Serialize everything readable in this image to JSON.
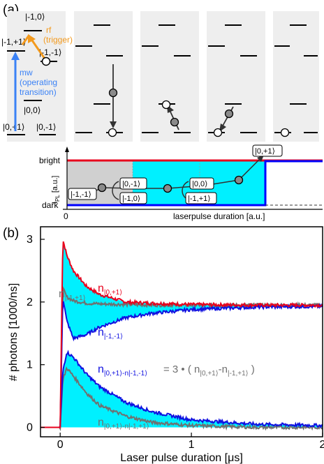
{
  "panel_a": {
    "label": "(a)",
    "levels": {
      "l_m10": "|-1,0⟩",
      "l_m1p1": "|-1,+1⟩",
      "l_m1m1": "|-1,-1⟩",
      "l_00": "|0,0⟩",
      "l_0p1": "|0,+1⟩",
      "l_0m1": "|0,-1⟩"
    },
    "rf_label_1": "rf",
    "rf_label_2": "(trigger)",
    "mw_label_1": "mw",
    "mw_label_2": "(operating",
    "mw_label_3": "transition)",
    "colors": {
      "rf": "#f39a1e",
      "mw": "#3b82f6"
    }
  },
  "schematic": {
    "bright": "bright",
    "dark": "dark",
    "ylabel_main": "I",
    "ylabel_sub": "PL",
    "ylabel_units": "[a.u.]",
    "origin": "0",
    "xlabel": "laserpulse duration [a.u.]",
    "boxes": {
      "b1": "|-1,-1⟩",
      "b2": "|0,-1⟩",
      "b3": "|-1,0⟩",
      "b4": "|0,0⟩",
      "b5": "|-1,+1⟩",
      "b6": "|0,+1⟩"
    },
    "colors": {
      "bright_line": "#e8001c",
      "dark_line": "#0000ff",
      "cyan": "#00f0ff",
      "gray": "#d0d0d0"
    }
  },
  "chart_data": {
    "type": "line",
    "panel_label": "(b)",
    "xlabel": "Laser pulse duration [μs]",
    "ylabel": "# photons [1000/ns]",
    "xlim": [
      -0.15,
      2.0
    ],
    "ylim": [
      -0.15,
      3.2
    ],
    "xticks": [
      "0",
      "1",
      "2"
    ],
    "yticks": [
      "0",
      "1",
      "2",
      "3"
    ],
    "annotation": "= 3 • ( n|0,+1⟩-n|-1,+1⟩ )",
    "label_parts": {
      "n": "n",
      "s_0p1": "|0,+1⟩",
      "s_m1p1": "|-1,+1⟩",
      "s_m1m1": "|-1,-1⟩",
      "s_d1": "|0,+1⟩-n|-1,-1⟩",
      "s_d2": "|0,+1⟩-n|-1,+1⟩",
      "eq_prefix": "= 3 • ( n",
      "eq_mid": "-n",
      "eq_suffix": " )"
    },
    "series": [
      {
        "name": "n|0,+1⟩",
        "color": "#e8001c",
        "x": [
          0.0,
          0.02,
          0.05,
          0.1,
          0.2,
          0.3,
          0.5,
          0.7,
          1.0,
          1.5,
          2.0
        ],
        "y": [
          0.0,
          3.0,
          2.75,
          2.5,
          2.25,
          2.12,
          2.0,
          1.98,
          1.96,
          1.95,
          1.95
        ]
      },
      {
        "name": "n|-1,+1⟩",
        "color": "#707070",
        "x": [
          0.0,
          0.02,
          0.05,
          0.1,
          0.2,
          0.3,
          0.5,
          0.7,
          1.0,
          1.5,
          2.0
        ],
        "y": [
          0.0,
          2.22,
          2.08,
          2.02,
          1.98,
          1.97,
          1.96,
          1.95,
          1.95,
          1.95,
          1.95
        ]
      },
      {
        "name": "n|-1,-1⟩",
        "color": "#1010e0",
        "x": [
          0.0,
          0.02,
          0.05,
          0.1,
          0.2,
          0.3,
          0.5,
          0.7,
          1.0,
          1.5,
          2.0
        ],
        "y": [
          0.0,
          2.08,
          1.7,
          1.42,
          1.48,
          1.6,
          1.75,
          1.82,
          1.88,
          1.92,
          1.93
        ]
      },
      {
        "name": "n|0,+1⟩-n|-1,-1⟩",
        "color": "#1010e0",
        "x": [
          0.0,
          0.02,
          0.05,
          0.1,
          0.2,
          0.3,
          0.5,
          0.7,
          1.0,
          1.5,
          2.0
        ],
        "y": [
          0.0,
          0.9,
          1.2,
          1.12,
          0.85,
          0.65,
          0.4,
          0.25,
          0.12,
          0.05,
          0.03
        ]
      },
      {
        "name": "n|0,+1⟩-n|-1,+1⟩",
        "color": "#707070",
        "x": [
          0.0,
          0.02,
          0.05,
          0.1,
          0.2,
          0.3,
          0.5,
          0.7,
          1.0,
          1.5,
          2.0
        ],
        "y": [
          0.0,
          0.75,
          0.95,
          0.82,
          0.55,
          0.35,
          0.18,
          0.08,
          0.03,
          0.0,
          0.0
        ]
      }
    ],
    "colors": {
      "cyan_fill": "#00f0ff",
      "gray_fill": "#d0d0d0"
    }
  }
}
